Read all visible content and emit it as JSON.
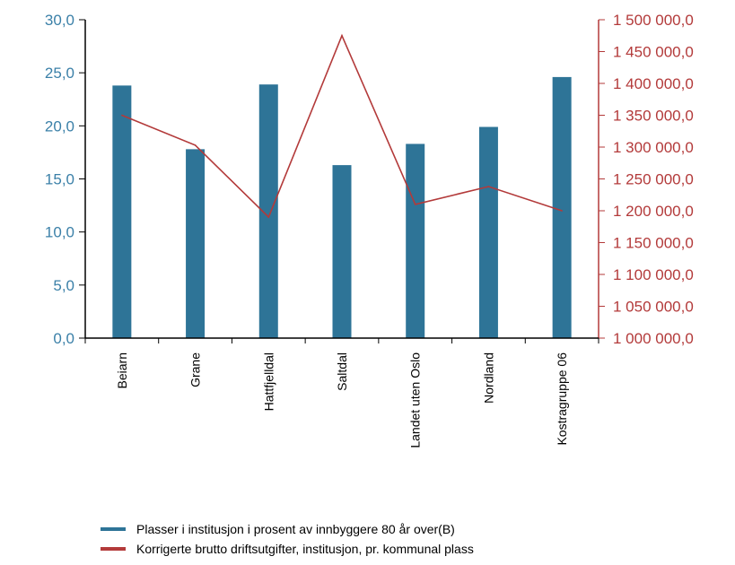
{
  "chart_data": {
    "type": "bar+line",
    "categories": [
      "Beiarn",
      "Grane",
      "Hattfjelldal",
      "Saltdal",
      "Landet uten Oslo",
      "Nordland",
      "Kostragruppe 06"
    ],
    "series": [
      {
        "name": "Plasser i institusjon i prosent av innbyggere 80 år over(B)",
        "type": "bar",
        "axis": "left",
        "color": "#2E7497",
        "values": [
          23.8,
          17.8,
          23.9,
          16.3,
          18.3,
          19.9,
          24.6
        ]
      },
      {
        "name": "Korrigerte brutto driftsutgifter, institusjon, pr. kommunal plass",
        "type": "line",
        "axis": "right",
        "color": "#B33A3A",
        "values": [
          1350000,
          1303000,
          1190000,
          1475000,
          1210000,
          1238000,
          1200000
        ]
      }
    ],
    "left_axis": {
      "ylim": [
        0,
        30
      ],
      "ticks": [
        "0,0",
        "5,0",
        "10,0",
        "15,0",
        "20,0",
        "25,0",
        "30,0"
      ],
      "color": "#3B80A8"
    },
    "right_axis": {
      "ylim": [
        1000000,
        1500000
      ],
      "ticks": [
        "1 000 000,0",
        "1 050 000,0",
        "1 100 000,0",
        "1 150 000,0",
        "1 200 000,0",
        "1 250 000,0",
        "1 300 000,0",
        "1 350 000,0",
        "1 400 000,0",
        "1 450 000,0",
        "1 500 000,0"
      ],
      "color": "#B33A3A"
    },
    "grid": false,
    "legend_position": "bottom"
  }
}
